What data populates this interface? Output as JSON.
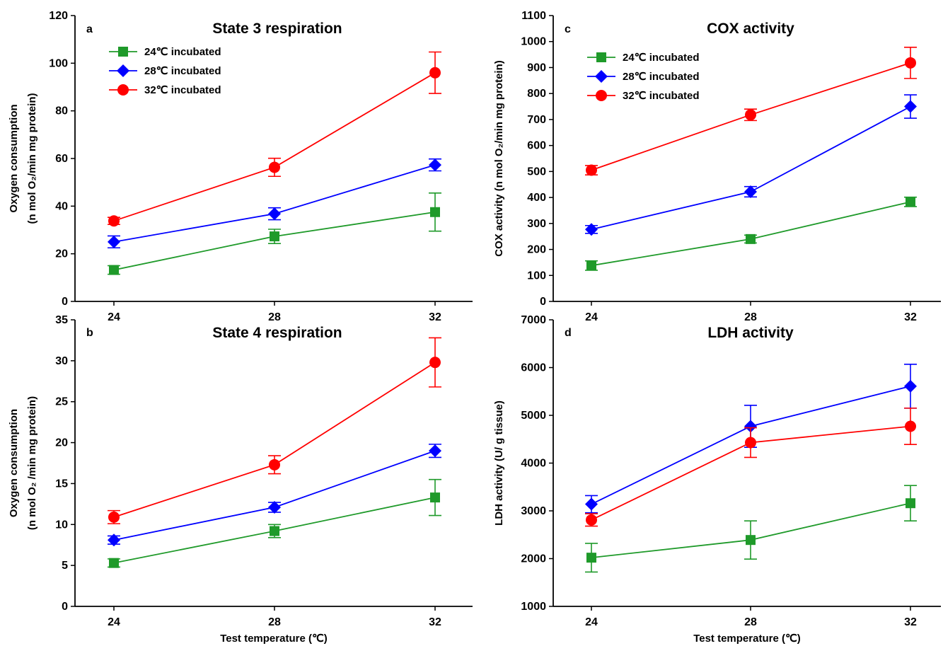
{
  "figure": {
    "xlabel": "Test temperature (℃)",
    "legend_labels": [
      "24℃ incubated",
      "28℃ incubated",
      "32℃ incubated"
    ],
    "colors": {
      "green": "#1f9a2a",
      "blue": "#0000ff",
      "red": "#ff0000"
    }
  },
  "chart_data": [
    {
      "id": "a",
      "type": "line",
      "letter": "a",
      "title": "State 3 respiration",
      "ylabel_line1": "Oxygen consumption",
      "ylabel_line2": "(n mol O₂/min mg protein)",
      "xlabel": "",
      "x": [
        24,
        28,
        32
      ],
      "xticks": [
        "24",
        "28",
        "32"
      ],
      "ylim": [
        0,
        120
      ],
      "yticks": [
        "0",
        "20",
        "40",
        "60",
        "80",
        "100",
        "120"
      ],
      "legend": "top-left",
      "series": [
        {
          "name": "24℃ incubated",
          "color": "#1f9a2a",
          "marker": "square",
          "values": [
            13.2,
            27.3,
            37.5
          ],
          "errors": [
            1.8,
            3.0,
            8.0
          ]
        },
        {
          "name": "28℃ incubated",
          "color": "#0000ff",
          "marker": "diamond",
          "values": [
            25.0,
            36.8,
            57.3
          ],
          "errors": [
            2.5,
            2.5,
            2.5
          ]
        },
        {
          "name": "32℃ incubated",
          "color": "#ff0000",
          "marker": "circle",
          "values": [
            33.8,
            56.3,
            96.0
          ],
          "errors": [
            1.5,
            3.8,
            8.7
          ]
        }
      ]
    },
    {
      "id": "b",
      "type": "line",
      "letter": "b",
      "title": "State 4 respiration",
      "ylabel_line1": "Oxygen consumption",
      "ylabel_line2": "(n mol O₂ /min mg protein)",
      "xlabel": "Test temperature (℃)",
      "x": [
        24,
        28,
        32
      ],
      "xticks": [
        "24",
        "28",
        "32"
      ],
      "ylim": [
        0,
        35
      ],
      "yticks": [
        "0",
        "5",
        "10",
        "15",
        "20",
        "25",
        "30",
        "35"
      ],
      "legend": "none",
      "series": [
        {
          "name": "24℃ incubated",
          "color": "#1f9a2a",
          "marker": "square",
          "values": [
            5.3,
            9.2,
            13.3
          ],
          "errors": [
            0.5,
            0.8,
            2.2
          ]
        },
        {
          "name": "28℃ incubated",
          "color": "#0000ff",
          "marker": "diamond",
          "values": [
            8.1,
            12.1,
            19.0
          ],
          "errors": [
            0.5,
            0.6,
            0.8
          ]
        },
        {
          "name": "32℃ incubated",
          "color": "#ff0000",
          "marker": "circle",
          "values": [
            10.9,
            17.3,
            29.8
          ],
          "errors": [
            0.8,
            1.1,
            3.0
          ]
        }
      ]
    },
    {
      "id": "c",
      "type": "line",
      "letter": "c",
      "title": "COX activity",
      "ylabel_line1": "COX activity (n mol O₂/min mg protein)",
      "ylabel_line2": "",
      "xlabel": "",
      "x": [
        24,
        28,
        32
      ],
      "xticks": [
        "24",
        "28",
        "32"
      ],
      "ylim": [
        0,
        1100
      ],
      "yticks": [
        "0",
        "100",
        "200",
        "300",
        "400",
        "500",
        "600",
        "700",
        "800",
        "900",
        "1000",
        "1100"
      ],
      "legend": "top-left",
      "series": [
        {
          "name": "24℃ incubated",
          "color": "#1f9a2a",
          "marker": "square",
          "values": [
            138,
            240,
            383
          ],
          "errors": [
            18,
            15,
            18
          ]
        },
        {
          "name": "28℃ incubated",
          "color": "#0000ff",
          "marker": "diamond",
          "values": [
            277,
            422,
            750
          ],
          "errors": [
            15,
            20,
            45
          ]
        },
        {
          "name": "32℃ incubated",
          "color": "#ff0000",
          "marker": "circle",
          "values": [
            505,
            718,
            918
          ],
          "errors": [
            18,
            22,
            60
          ]
        }
      ]
    },
    {
      "id": "d",
      "type": "line",
      "letter": "d",
      "title": "LDH activity",
      "ylabel_line1": "LDH activity (U/ g tissue)",
      "ylabel_line2": "",
      "xlabel": "Test temperature (℃)",
      "x": [
        24,
        28,
        32
      ],
      "xticks": [
        "24",
        "28",
        "32"
      ],
      "ylim": [
        1000,
        7000
      ],
      "yticks": [
        "1000",
        "2000",
        "3000",
        "4000",
        "5000",
        "6000",
        "7000"
      ],
      "legend": "none",
      "series": [
        {
          "name": "24℃ incubated",
          "color": "#1f9a2a",
          "marker": "square",
          "values": [
            2020,
            2390,
            3160
          ],
          "errors": [
            300,
            400,
            370
          ]
        },
        {
          "name": "28℃ incubated",
          "color": "#0000ff",
          "marker": "diamond",
          "values": [
            3140,
            4770,
            5610
          ],
          "errors": [
            180,
            440,
            460
          ]
        },
        {
          "name": "32℃ incubated",
          "color": "#ff0000",
          "marker": "circle",
          "values": [
            2810,
            4430,
            4770
          ],
          "errors": [
            130,
            310,
            380
          ]
        }
      ]
    }
  ]
}
